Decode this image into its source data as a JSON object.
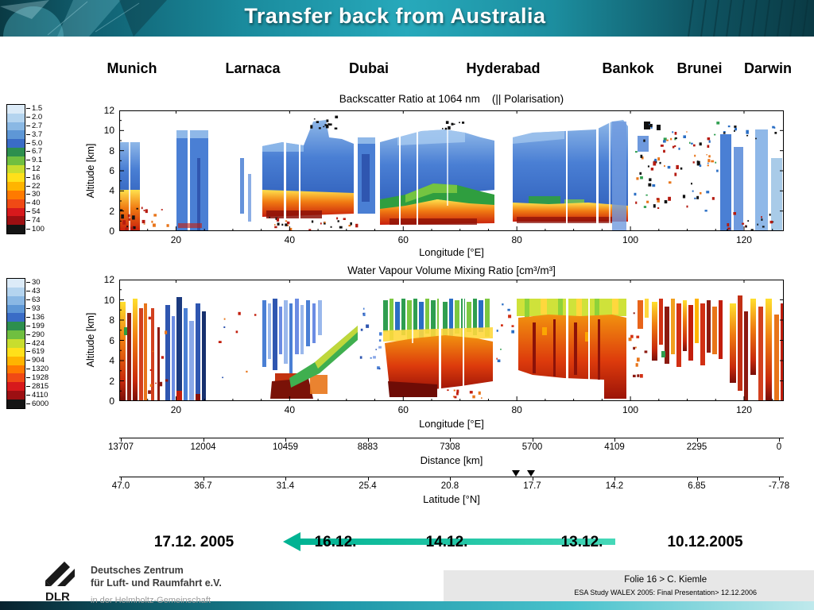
{
  "slide": {
    "title": "Transfer back from Australia",
    "cities": [
      "Munich",
      "Larnaca",
      "Dubai",
      "Hyderabad",
      "Bankok",
      "Brunei",
      "Darwin"
    ],
    "timeline": {
      "dates": [
        "17.12. 2005",
        "16.12.",
        "14.12.",
        "13.12.",
        "10.12.2005"
      ],
      "arrow_color": "#00b393",
      "arrow_direction": "left"
    }
  },
  "chart_data": [
    {
      "type": "heatmap",
      "title": "Backscatter Ratio at 1064 nm    (|| Polarisation)",
      "xlabel": "Longitude [°E]",
      "ylabel": "Altitude [km]",
      "xlim": [
        10,
        127
      ],
      "ylim": [
        0,
        12
      ],
      "xticks": [
        20,
        40,
        60,
        80,
        100,
        120
      ],
      "yticks": [
        0,
        2,
        4,
        6,
        8,
        10,
        12
      ],
      "grid": false,
      "colorbar": {
        "position": "left",
        "levels": [
          "1.5",
          "2.0",
          "2.7",
          "3.7",
          "5.0",
          "6.7",
          "9.1",
          "12",
          "16",
          "22",
          "30",
          "40",
          "54",
          "74",
          "100"
        ],
        "colors": [
          "#dcebf8",
          "#b4d4ef",
          "#8ab8e4",
          "#5e97d6",
          "#3a6cc6",
          "#2d8f4e",
          "#70bf40",
          "#c8dd2e",
          "#ffe01a",
          "#ffb400",
          "#ff7a00",
          "#f04a15",
          "#d7191c",
          "#9c0f12",
          "#141414"
        ]
      }
    },
    {
      "type": "heatmap",
      "title": "Water Vapour Volume Mixing Ratio [cm³/m³]",
      "xlabel": "Longitude [°E]",
      "ylabel": "Altitude [km]",
      "xlim": [
        10,
        127
      ],
      "ylim": [
        0,
        12
      ],
      "xticks": [
        20,
        40,
        60,
        80,
        100,
        120
      ],
      "yticks": [
        0,
        2,
        4,
        6,
        8,
        10,
        12
      ],
      "grid": false,
      "colorbar": {
        "position": "left",
        "levels": [
          "30",
          "43",
          "63",
          "93",
          "136",
          "199",
          "290",
          "424",
          "619",
          "904",
          "1320",
          "1928",
          "2815",
          "4110",
          "6000"
        ],
        "colors": [
          "#dcebf8",
          "#b4d4ef",
          "#8ab8e4",
          "#5e97d6",
          "#3a6cc6",
          "#2d8f4e",
          "#70bf40",
          "#c8dd2e",
          "#ffe01a",
          "#ffb400",
          "#ff7a00",
          "#f04a15",
          "#d7191c",
          "#9c0f12",
          "#141414"
        ]
      }
    }
  ],
  "distance_axis": {
    "label": "Distance [km]",
    "values": [
      "13707",
      "12004",
      "10459",
      "8883",
      "7308",
      "5700",
      "4109",
      "2295",
      "0"
    ]
  },
  "latitude_axis": {
    "label": "Latitude [°N]",
    "values": [
      "47.0",
      "36.7",
      "31.4",
      "25.4",
      "20.8",
      "17.7",
      "14.2",
      "6.85",
      "-7.78"
    ]
  },
  "footer": {
    "logo_label": "DLR",
    "org_line1": "Deutsches Zentrum",
    "org_line2": "für Luft- und Raumfahrt e.V.",
    "org_line3": "in der Helmholtz-Gemeinschaft",
    "slide_ref": "Folie 16 > C. Kiemle",
    "study_ref": "ESA Study WALEX 2005: Final Presentation> 12.12.2006"
  }
}
